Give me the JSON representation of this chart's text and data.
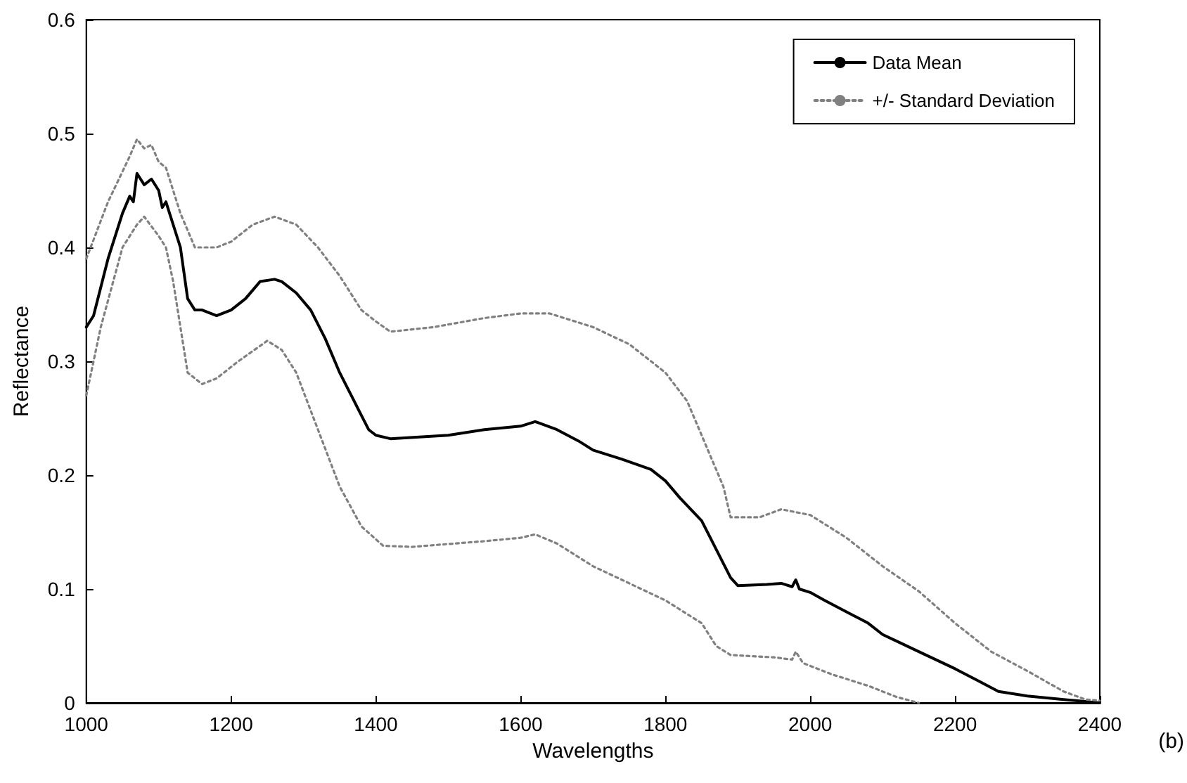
{
  "chart_data": {
    "type": "line",
    "xlabel": "Wavelengths",
    "ylabel": "Reflectance",
    "annotations": [
      "(b)"
    ],
    "xlim": [
      1000,
      2400
    ],
    "xticks": [
      1000,
      1200,
      1400,
      1600,
      1800,
      2000,
      2200,
      2400
    ],
    "ylim": [
      0,
      0.6
    ],
    "yticks": [
      0,
      0.1,
      0.2,
      0.3,
      0.4,
      0.5,
      0.6
    ],
    "grid": false,
    "legend": "top right",
    "marker": "none",
    "series": [
      {
        "name": "Data Mean",
        "color": "#000000",
        "line_style": "solid",
        "x": [
          1000,
          1010,
          1030,
          1050,
          1060,
          1065,
          1070,
          1080,
          1090,
          1100,
          1105,
          1110,
          1130,
          1140,
          1150,
          1160,
          1180,
          1200,
          1220,
          1240,
          1260,
          1270,
          1290,
          1310,
          1330,
          1350,
          1370,
          1390,
          1400,
          1420,
          1500,
          1550,
          1600,
          1620,
          1650,
          1680,
          1700,
          1740,
          1780,
          1800,
          1820,
          1850,
          1870,
          1890,
          1900,
          1940,
          1960,
          1975,
          1980,
          1985,
          2000,
          2020,
          2050,
          2080,
          2100,
          2150,
          2200,
          2230,
          2260,
          2300,
          2350,
          2400
        ],
        "values": [
          0.33,
          0.34,
          0.39,
          0.43,
          0.445,
          0.44,
          0.465,
          0.455,
          0.46,
          0.45,
          0.435,
          0.44,
          0.4,
          0.355,
          0.345,
          0.345,
          0.34,
          0.345,
          0.355,
          0.37,
          0.372,
          0.37,
          0.36,
          0.345,
          0.32,
          0.29,
          0.265,
          0.24,
          0.235,
          0.232,
          0.235,
          0.24,
          0.243,
          0.247,
          0.24,
          0.23,
          0.222,
          0.214,
          0.205,
          0.195,
          0.18,
          0.16,
          0.135,
          0.11,
          0.103,
          0.104,
          0.105,
          0.102,
          0.108,
          0.1,
          0.097,
          0.09,
          0.08,
          0.07,
          0.06,
          0.045,
          0.03,
          0.02,
          0.01,
          0.006,
          0.003,
          0
        ]
      },
      {
        "name": "+/- Standard Deviation",
        "color": "#808080",
        "line_style": "dotted",
        "x": [
          1000,
          1030,
          1060,
          1070,
          1080,
          1090,
          1100,
          1110,
          1130,
          1150,
          1180,
          1200,
          1230,
          1260,
          1290,
          1320,
          1350,
          1380,
          1400,
          1420,
          1480,
          1550,
          1600,
          1640,
          1700,
          1750,
          1800,
          1830,
          1860,
          1880,
          1890,
          1930,
          1960,
          2000,
          2050,
          2100,
          2150,
          2200,
          2250,
          2300,
          2350,
          2380,
          2400
        ],
        "values": [
          0.39,
          0.44,
          0.48,
          0.495,
          0.487,
          0.49,
          0.475,
          0.47,
          0.43,
          0.4,
          0.4,
          0.405,
          0.42,
          0.427,
          0.42,
          0.4,
          0.375,
          0.345,
          0.335,
          0.326,
          0.33,
          0.338,
          0.342,
          0.342,
          0.33,
          0.315,
          0.29,
          0.265,
          0.22,
          0.19,
          0.163,
          0.163,
          0.17,
          0.165,
          0.145,
          0.12,
          0.098,
          0.07,
          0.045,
          0.028,
          0.01,
          0.003,
          0.002
        ]
      },
      {
        "color": "#808080",
        "line_style": "dotted",
        "x": [
          1000,
          1020,
          1050,
          1070,
          1080,
          1100,
          1110,
          1120,
          1140,
          1160,
          1180,
          1210,
          1250,
          1270,
          1290,
          1320,
          1350,
          1380,
          1410,
          1450,
          1550,
          1600,
          1620,
          1650,
          1700,
          1750,
          1800,
          1850,
          1870,
          1890,
          1950,
          1975,
          1980,
          1990,
          2030,
          2080,
          2120,
          2150
        ],
        "values": [
          0.27,
          0.33,
          0.4,
          0.42,
          0.427,
          0.41,
          0.4,
          0.37,
          0.29,
          0.28,
          0.285,
          0.3,
          0.318,
          0.31,
          0.29,
          0.24,
          0.19,
          0.155,
          0.138,
          0.137,
          0.142,
          0.145,
          0.148,
          0.14,
          0.12,
          0.105,
          0.09,
          0.07,
          0.05,
          0.042,
          0.04,
          0.038,
          0.045,
          0.035,
          0.025,
          0.015,
          0.005,
          0
        ]
      }
    ]
  }
}
